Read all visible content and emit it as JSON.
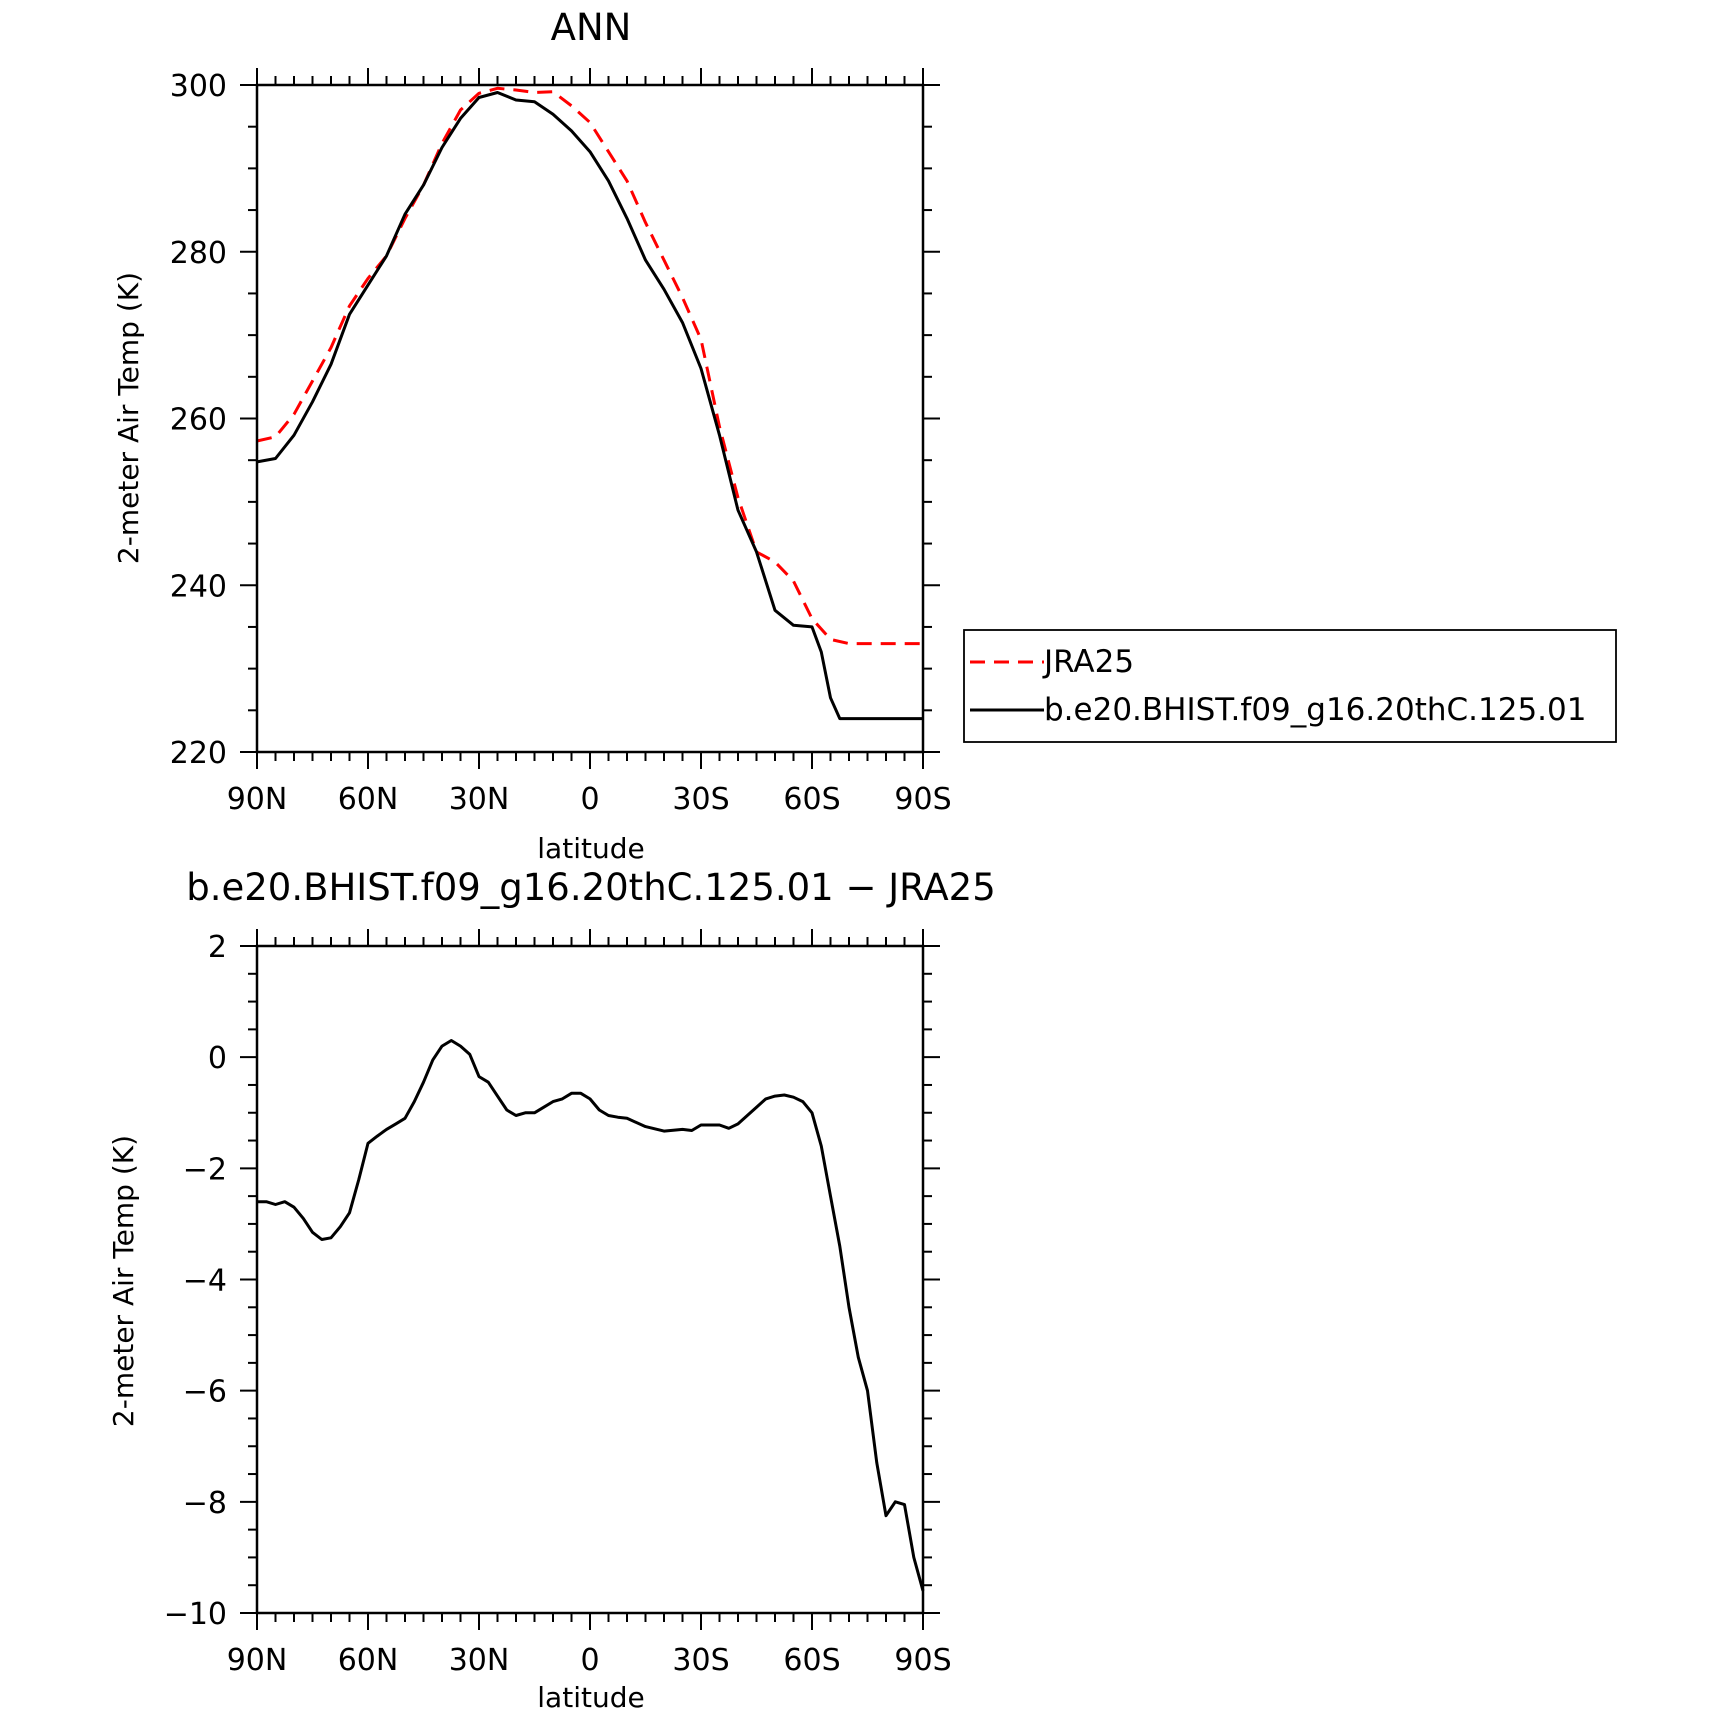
{
  "chart_data": [
    {
      "type": "line",
      "title": "ANN",
      "xlabel": "latitude",
      "ylabel": "2-meter Air Temp (K)",
      "xlim": [
        90,
        -90
      ],
      "ylim": [
        220,
        300
      ],
      "xticks": [
        90,
        60,
        30,
        0,
        -30,
        -60,
        -90
      ],
      "xtick_labels": [
        "90N",
        "60N",
        "30N",
        "0",
        "30S",
        "60S",
        "90S"
      ],
      "yticks": [
        220,
        240,
        260,
        280,
        300
      ],
      "ytick_labels": [
        "220",
        "240",
        "260",
        "280",
        "300"
      ],
      "grid": false,
      "legend": "right, outside plot",
      "series": [
        {
          "name": "JRA25",
          "color": "#ff0000",
          "style": "dashed",
          "x": [
            90,
            85,
            80,
            75,
            70,
            65,
            60,
            55,
            50,
            45,
            40,
            35,
            30,
            25,
            20,
            15,
            10,
            5,
            0,
            -5,
            -10,
            -15,
            -20,
            -25,
            -30,
            -35,
            -40,
            -45,
            -50,
            -55,
            -60,
            -65,
            -70,
            -75,
            -80,
            -82.5,
            -85,
            -87.5,
            -90
          ],
          "y": [
            257.3,
            257.8,
            260.5,
            264.5,
            268.5,
            273.5,
            276.8,
            279.5,
            284.0,
            288.0,
            293.0,
            297.0,
            299.0,
            299.6,
            299.4,
            299.1,
            299.2,
            297.5,
            295.5,
            292.0,
            288.5,
            283.5,
            279.0,
            274.5,
            269.5,
            259.0,
            250.5,
            244.0,
            242.8,
            240.5,
            236.0,
            233.5,
            233.0,
            233.0,
            233.0,
            233.0,
            233.0,
            233.0,
            233.0
          ]
        },
        {
          "name": "b.e20.BHIST.f09_g16.20thC.125.01",
          "color": "#000000",
          "style": "solid",
          "x": [
            90,
            85,
            80,
            75,
            70,
            65,
            60,
            55,
            50,
            45,
            40,
            35,
            30,
            25,
            20,
            15,
            10,
            5,
            0,
            -5,
            -10,
            -15,
            -20,
            -25,
            -30,
            -35,
            -40,
            -45,
            -50,
            -55,
            -60,
            -62.5,
            -65,
            -67.5,
            -70,
            -72.5,
            -75,
            -77.5,
            -80,
            -82.5,
            -85,
            -87.5,
            -90
          ],
          "y": [
            254.8,
            255.2,
            258.0,
            262.0,
            266.5,
            272.5,
            276.0,
            279.5,
            284.5,
            288.0,
            292.5,
            296.0,
            298.5,
            299.1,
            298.2,
            298.0,
            296.5,
            294.5,
            292.0,
            288.5,
            284.0,
            279.0,
            275.5,
            271.5,
            266.0,
            258.0,
            249.0,
            244.0,
            237.0,
            235.2,
            235.0,
            232.0,
            226.5,
            224.0,
            224.0,
            224.0,
            224.0,
            224.0,
            224.0,
            224.0,
            224.0,
            224.0,
            224.0
          ]
        }
      ]
    },
    {
      "type": "line",
      "title": "b.e20.BHIST.f09_g16.20thC.125.01 − JRA25",
      "xlabel": "latitude",
      "ylabel": "2-meter Air Temp (K)",
      "xlim": [
        90,
        -90
      ],
      "ylim": [
        -10,
        2
      ],
      "xticks": [
        90,
        60,
        30,
        0,
        -30,
        -60,
        -90
      ],
      "xtick_labels": [
        "90N",
        "60N",
        "30N",
        "0",
        "30S",
        "60S",
        "90S"
      ],
      "yticks": [
        -10,
        -8,
        -6,
        -4,
        -2,
        0,
        2
      ],
      "ytick_labels": [
        "−10",
        "−8",
        "−6",
        "−4",
        "−2",
        "0",
        "2"
      ],
      "grid": false,
      "series": [
        {
          "color": "#000000",
          "style": "solid",
          "x": [
            90,
            87.5,
            85,
            82.5,
            80,
            77.5,
            75,
            72.5,
            70,
            67.5,
            65,
            62.5,
            60,
            57.5,
            55,
            52.5,
            50,
            47.5,
            45,
            42.5,
            40,
            37.5,
            35,
            32.5,
            30,
            27.5,
            25,
            22.5,
            20,
            17.5,
            15,
            12.5,
            10,
            7.5,
            5,
            2.5,
            0,
            -2.5,
            -5,
            -7.5,
            -10,
            -15,
            -20,
            -25,
            -27.5,
            -30,
            -32.5,
            -35,
            -37.5,
            -40,
            -42.5,
            -45,
            -47.5,
            -50,
            -52.5,
            -55,
            -57.5,
            -60,
            -62.5,
            -65,
            -67.5,
            -70,
            -72.5,
            -75,
            -77.5,
            -80,
            -82.5,
            -85,
            -87.5,
            -90
          ],
          "y": [
            -2.6,
            -2.6,
            -2.65,
            -2.6,
            -2.7,
            -2.9,
            -3.15,
            -3.28,
            -3.25,
            -3.05,
            -2.8,
            -2.2,
            -1.55,
            -1.42,
            -1.3,
            -1.2,
            -1.1,
            -0.8,
            -0.45,
            -0.05,
            0.2,
            0.3,
            0.2,
            0.05,
            -0.35,
            -0.45,
            -0.7,
            -0.95,
            -1.05,
            -1.0,
            -1.0,
            -0.9,
            -0.8,
            -0.75,
            -0.65,
            -0.65,
            -0.75,
            -0.95,
            -1.05,
            -1.08,
            -1.1,
            -1.25,
            -1.33,
            -1.3,
            -1.32,
            -1.22,
            -1.22,
            -1.22,
            -1.28,
            -1.2,
            -1.05,
            -0.9,
            -0.75,
            -0.7,
            -0.68,
            -0.72,
            -0.8,
            -1.0,
            -1.6,
            -2.5,
            -3.4,
            -4.5,
            -5.4,
            -6.0,
            -7.3,
            -8.25,
            -8.0,
            -8.05,
            -9.0,
            -9.6
          ]
        }
      ]
    }
  ]
}
